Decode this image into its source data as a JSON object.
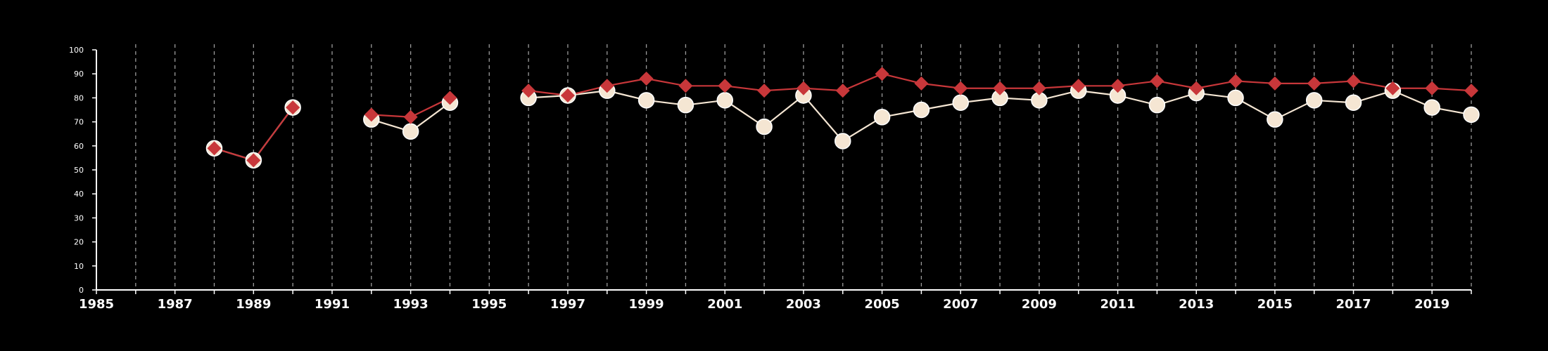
{
  "chart_data": {
    "type": "line",
    "title": "",
    "xlabel": "",
    "ylabel": "",
    "xlim": [
      1985,
      2020
    ],
    "ylim": [
      0,
      100
    ],
    "x_ticks": [
      "1985",
      "1987",
      "1989",
      "1991",
      "1993",
      "1995",
      "1997",
      "1999",
      "2001",
      "2003",
      "2005",
      "2007",
      "2009",
      "2011",
      "2013",
      "2015",
      "2017",
      "2019"
    ],
    "y_ticks": [
      "0",
      "10",
      "20",
      "30",
      "40",
      "50",
      "60",
      "70",
      "80",
      "90",
      "100"
    ],
    "grid": "vertical dashed lines at every year",
    "series": [
      {
        "marker": "circle",
        "color": "#f5e6d3",
        "points": [
          [
            1988,
            59
          ],
          [
            1989,
            54
          ],
          [
            1990,
            76
          ],
          [
            1992,
            71
          ],
          [
            1993,
            66
          ],
          [
            1994,
            78
          ],
          [
            1996,
            80
          ],
          [
            1997,
            81
          ],
          [
            1998,
            83
          ],
          [
            1999,
            79
          ],
          [
            2000,
            77
          ],
          [
            2001,
            79
          ],
          [
            2002,
            68
          ],
          [
            2003,
            81
          ],
          [
            2004,
            62
          ],
          [
            2005,
            72
          ],
          [
            2006,
            75
          ],
          [
            2007,
            78
          ],
          [
            2008,
            80
          ],
          [
            2009,
            79
          ],
          [
            2010,
            83
          ],
          [
            2011,
            81
          ],
          [
            2012,
            77
          ],
          [
            2013,
            82
          ],
          [
            2014,
            80
          ],
          [
            2015,
            71
          ],
          [
            2016,
            79
          ],
          [
            2017,
            78
          ],
          [
            2018,
            83
          ],
          [
            2019,
            76
          ],
          [
            2020,
            73
          ]
        ]
      },
      {
        "marker": "diamond",
        "color": "#c8373a",
        "points": [
          [
            1988,
            59
          ],
          [
            1989,
            54
          ],
          [
            1990,
            76
          ],
          [
            1992,
            73
          ],
          [
            1993,
            72
          ],
          [
            1994,
            80
          ],
          [
            1996,
            83
          ],
          [
            1997,
            81
          ],
          [
            1998,
            85
          ],
          [
            1999,
            88
          ],
          [
            2000,
            85
          ],
          [
            2001,
            85
          ],
          [
            2002,
            83
          ],
          [
            2003,
            84
          ],
          [
            2004,
            83
          ],
          [
            2005,
            90
          ],
          [
            2006,
            86
          ],
          [
            2007,
            84
          ],
          [
            2008,
            84
          ],
          [
            2009,
            84
          ],
          [
            2010,
            85
          ],
          [
            2011,
            85
          ],
          [
            2012,
            87
          ],
          [
            2013,
            84
          ],
          [
            2014,
            87
          ],
          [
            2015,
            86
          ],
          [
            2016,
            86
          ],
          [
            2017,
            87
          ],
          [
            2018,
            84
          ],
          [
            2019,
            84
          ],
          [
            2020,
            83
          ]
        ]
      }
    ]
  }
}
